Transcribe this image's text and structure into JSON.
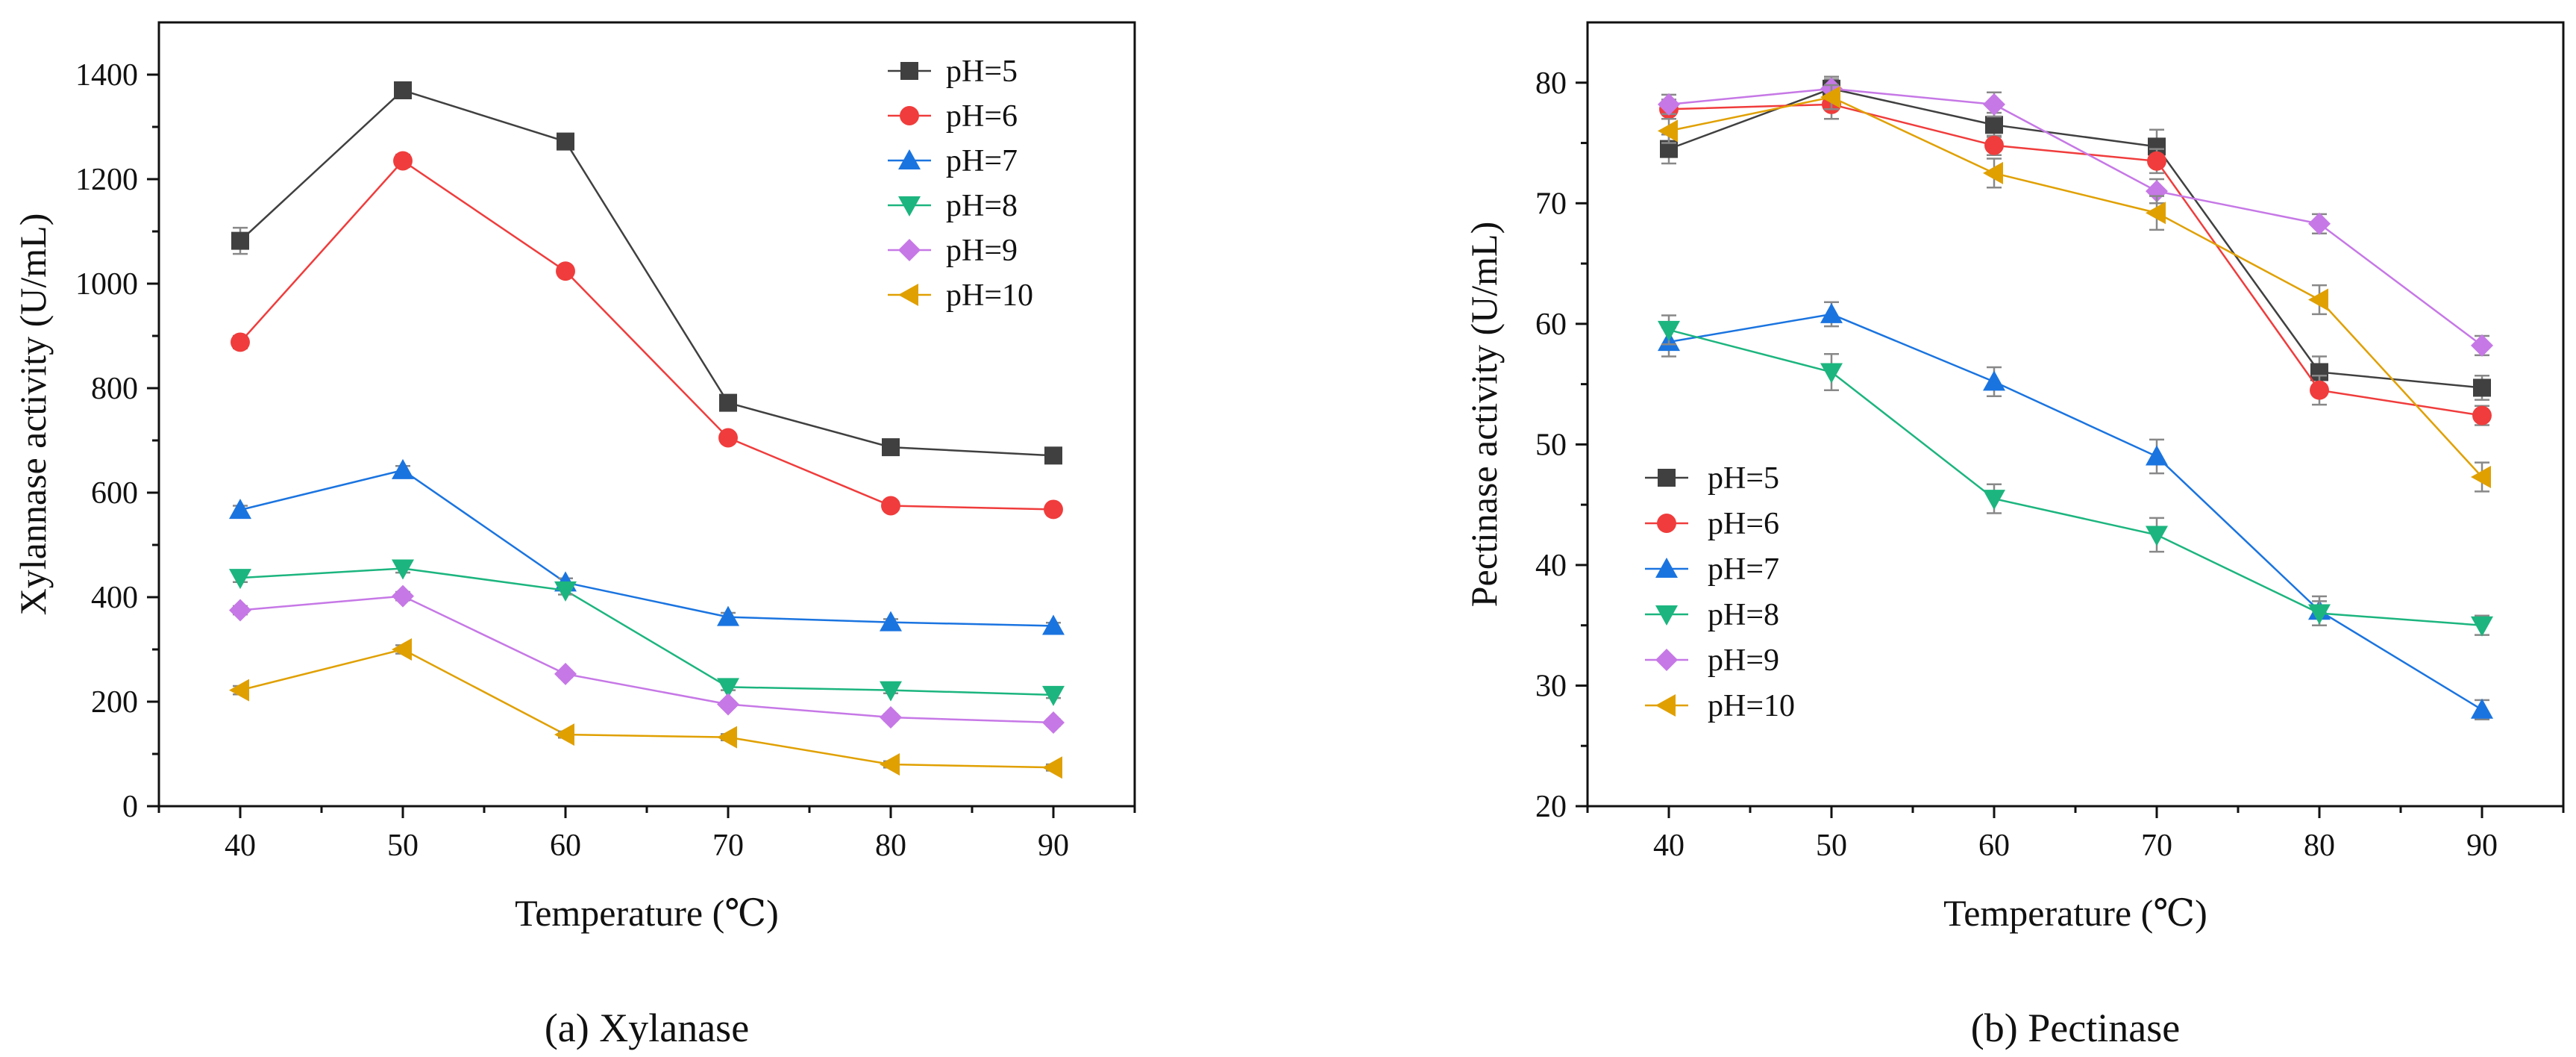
{
  "figure": {
    "captions": [
      "(a) Xylanase",
      "(b) Pectinase"
    ]
  },
  "chart_data": [
    {
      "type": "line",
      "title": "(a) Xylanase",
      "xlabel": "Temperature (℃)",
      "ylabel": "Xylannase activity (U/mL)",
      "xlim": [
        35,
        95
      ],
      "ylim": [
        0,
        1500
      ],
      "x": [
        40,
        50,
        60,
        70,
        80,
        90
      ],
      "xticks": [
        40,
        50,
        60,
        70,
        80,
        90
      ],
      "yticks": [
        0,
        200,
        400,
        600,
        800,
        1000,
        1200,
        1400
      ],
      "legend_position": "top-right",
      "series": [
        {
          "name": "pH=5",
          "values": [
            1082,
            1370,
            1272,
            772,
            687,
            671
          ],
          "errors": [
            25,
            15,
            10,
            12,
            10,
            10
          ],
          "color": "#404040",
          "marker": "square"
        },
        {
          "name": "pH=6",
          "values": [
            888,
            1235,
            1024,
            705,
            575,
            568
          ],
          "errors": [
            12,
            12,
            10,
            10,
            8,
            8
          ],
          "color": "#f03c3c",
          "marker": "circle"
        },
        {
          "name": "pH=7",
          "values": [
            567,
            643,
            428,
            362,
            352,
            345
          ],
          "errors": [
            8,
            8,
            8,
            8,
            6,
            6
          ],
          "color": "#1a74e0",
          "marker": "triangle-up"
        },
        {
          "name": "pH=8",
          "values": [
            437,
            455,
            413,
            228,
            222,
            213
          ],
          "errors": [
            8,
            8,
            8,
            6,
            6,
            6
          ],
          "color": "#1cb57f",
          "marker": "triangle-down"
        },
        {
          "name": "pH=9",
          "values": [
            375,
            402,
            253,
            195,
            170,
            160
          ],
          "errors": [
            8,
            8,
            6,
            6,
            6,
            6
          ],
          "color": "#c678e6",
          "marker": "diamond"
        },
        {
          "name": "pH=10",
          "values": [
            222,
            300,
            137,
            132,
            80,
            74
          ],
          "errors": [
            8,
            8,
            6,
            6,
            6,
            6
          ],
          "color": "#e0a000",
          "marker": "triangle-left"
        }
      ]
    },
    {
      "type": "line",
      "title": "(b) Pectinase",
      "xlabel": "Temperature (℃)",
      "ylabel": "Pectinase activity (U/mL)",
      "xlim": [
        35,
        95
      ],
      "ylim": [
        20,
        85
      ],
      "x": [
        40,
        50,
        60,
        70,
        80,
        90
      ],
      "xticks": [
        40,
        50,
        60,
        70,
        80,
        90
      ],
      "yticks": [
        20,
        30,
        40,
        50,
        60,
        70,
        80
      ],
      "legend_position": "middle-left",
      "series": [
        {
          "name": "pH=5",
          "values": [
            74.5,
            79.5,
            76.5,
            74.7,
            56.0,
            54.7
          ],
          "errors": [
            1.2,
            1.0,
            1.0,
            1.4,
            1.3,
            1.0
          ],
          "color": "#404040",
          "marker": "square"
        },
        {
          "name": "pH=6",
          "values": [
            77.8,
            78.2,
            74.8,
            73.5,
            54.5,
            52.4
          ],
          "errors": [
            0.8,
            1.2,
            0.8,
            1.0,
            1.2,
            0.8
          ],
          "color": "#f03c3c",
          "marker": "circle"
        },
        {
          "name": "pH=7",
          "values": [
            58.5,
            60.8,
            55.2,
            49.0,
            36.2,
            28.0
          ],
          "errors": [
            1.2,
            1.0,
            1.2,
            1.4,
            1.2,
            0.8
          ],
          "color": "#1a74e0",
          "marker": "triangle-up"
        },
        {
          "name": "pH=8",
          "values": [
            59.5,
            56.0,
            45.5,
            42.5,
            36.0,
            35.0
          ],
          "errors": [
            1.2,
            1.5,
            1.2,
            1.4,
            1.0,
            0.8
          ],
          "color": "#1cb57f",
          "marker": "triangle-down"
        },
        {
          "name": "pH=9",
          "values": [
            78.2,
            79.5,
            78.2,
            71.0,
            68.3,
            58.2
          ],
          "errors": [
            0.8,
            0.8,
            1.0,
            1.0,
            0.8,
            0.8
          ],
          "color": "#c678e6",
          "marker": "diamond"
        },
        {
          "name": "pH=10",
          "values": [
            76.0,
            78.8,
            72.5,
            69.2,
            62.0,
            47.3
          ],
          "errors": [
            1.0,
            1.0,
            1.2,
            1.4,
            1.2,
            1.2
          ],
          "color": "#e0a000",
          "marker": "triangle-left"
        }
      ]
    }
  ]
}
